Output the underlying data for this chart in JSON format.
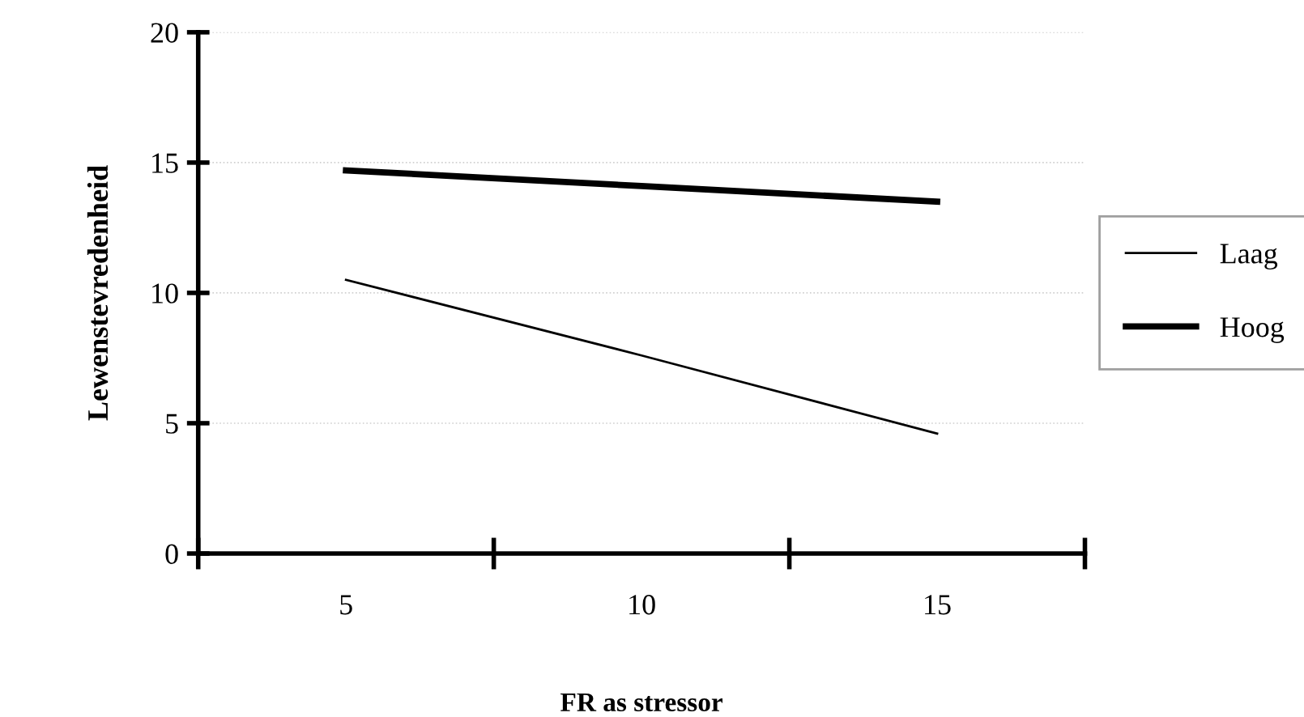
{
  "chart_data": {
    "type": "line",
    "xlabel": "FR as stressor",
    "ylabel": "Lewenstevredenheid",
    "categories": [
      "5",
      "10",
      "15"
    ],
    "series": [
      {
        "name": "Laag",
        "color": "#000000",
        "values": [
          10.5,
          7.6,
          4.6
        ]
      },
      {
        "name": "Hoog",
        "color": "#000000",
        "values": [
          14.7,
          14.1,
          13.5
        ]
      }
    ],
    "ylim": [
      0,
      20
    ],
    "yticks": [
      0,
      5,
      10,
      15,
      20
    ],
    "grid": "y",
    "legend": "right",
    "marker": "none",
    "line_style": "solid"
  }
}
